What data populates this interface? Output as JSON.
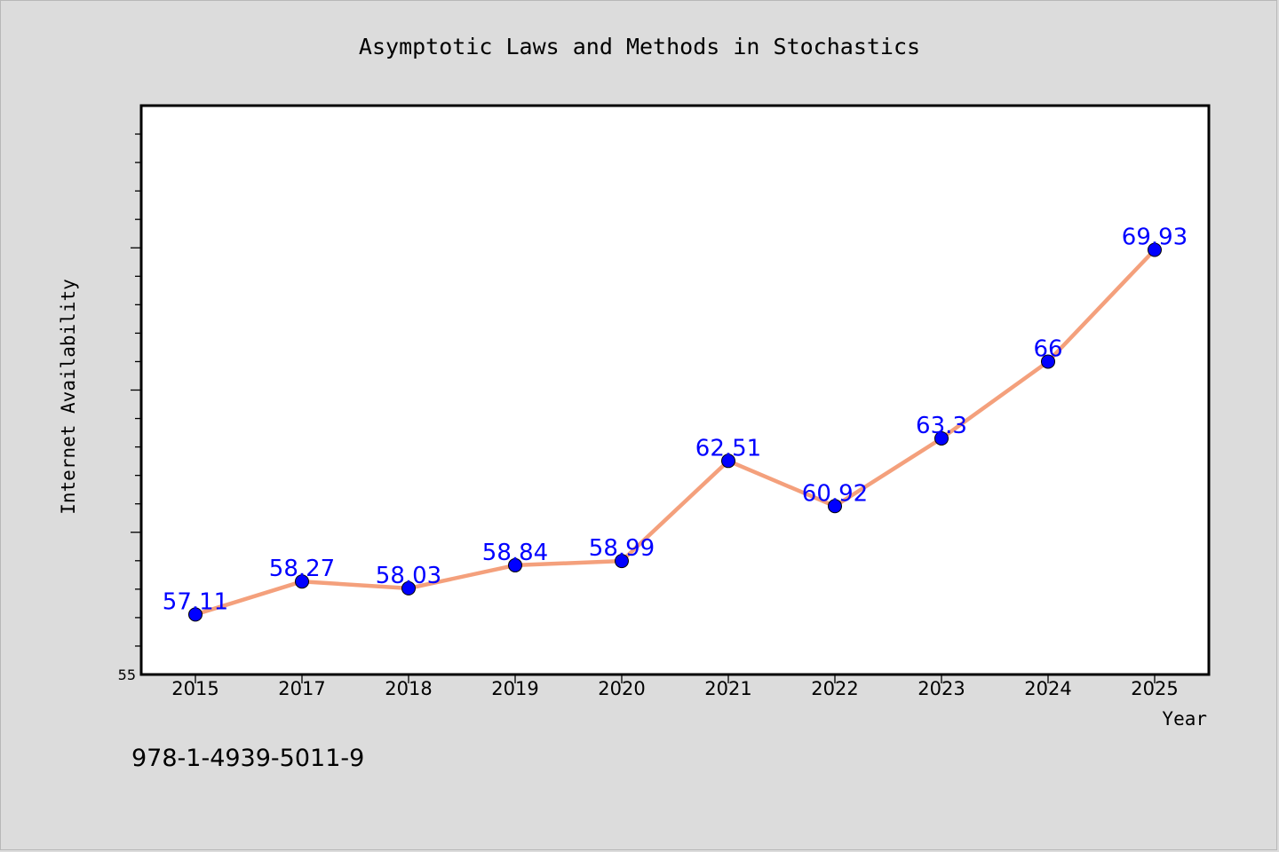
{
  "chart_data": {
    "type": "line",
    "title": "Asymptotic Laws and Methods in Stochastics",
    "xlabel": "Year",
    "ylabel": "Internet Availability",
    "categories": [
      "2015",
      "2017",
      "2018",
      "2019",
      "2020",
      "2021",
      "2022",
      "2023",
      "2024",
      "2025"
    ],
    "series": [
      {
        "values": [
          57.11,
          58.27,
          58.03,
          58.84,
          58.99,
          62.51,
          60.92,
          63.3,
          66,
          69.93
        ],
        "data_labels": [
          "57.11",
          "58.27",
          "58.03",
          "58.84",
          "58.99",
          "62.51",
          "60.92",
          "63.3",
          "66",
          "69.93"
        ]
      }
    ],
    "ylim": [
      55,
      75
    ],
    "y_tick_labels": [
      "55"
    ],
    "grid": false,
    "legend": "none",
    "colors": {
      "line": "#f4a07c",
      "marker": "#0000ff",
      "data_label": "#0000ff",
      "plot_background": "#ffffff",
      "page_background": "#dcdcdc"
    }
  },
  "footer": {
    "isbn": "978-1-4939-5011-9"
  }
}
